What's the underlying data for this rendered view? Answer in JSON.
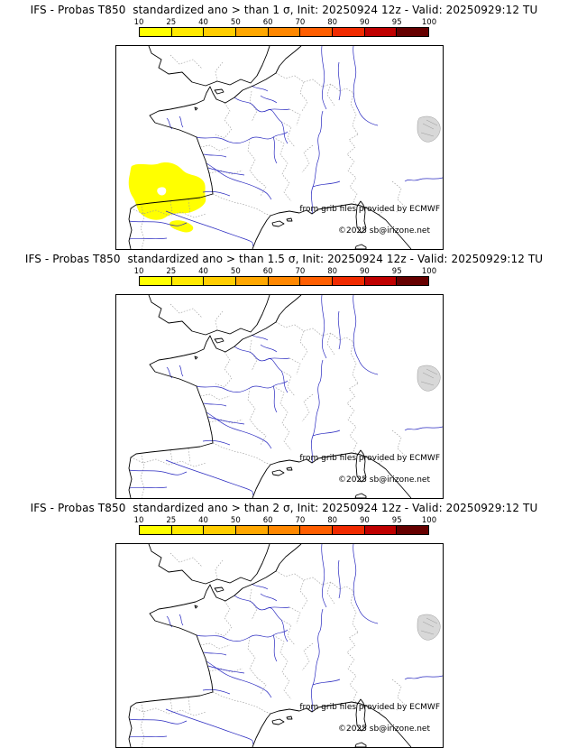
{
  "colorbar": {
    "ticks": [
      "10",
      "25",
      "40",
      "50",
      "60",
      "70",
      "80",
      "90",
      "95",
      "100"
    ],
    "colors": [
      "#ffff00",
      "#ffe900",
      "#ffcd00",
      "#ffa700",
      "#ff8700",
      "#ff5e00",
      "#f02a00",
      "#bf0000",
      "#660000"
    ],
    "unit": "%"
  },
  "map_colors": {
    "coastline": "#000000",
    "rivers": "#2a2ac0",
    "admin_borders": "#999999",
    "relief": "#d8d8d8",
    "anomaly_fill": "#ffff00"
  },
  "panels": [
    {
      "title": "IFS - Probas T850  standardized ano > than 1 σ, Init: 20250924 12z - Valid: 20250929:12 TU",
      "attribution": "from grib files provided by ECMWF",
      "copyright": "©2025 sb@irizone.net",
      "anomaly_present": true,
      "anomaly_region": "northwest Iberia",
      "anomaly_probability_band": "10-25",
      "anomaly_class": "anomaly shown"
    },
    {
      "title": "IFS - Probas T850  standardized ano > than 1.5 σ, Init: 20250924 12z - Valid: 20250929:12 TU",
      "attribution": "from grib files provided by ECMWF",
      "copyright": "©2025 sb@irizone.net",
      "anomaly_present": false,
      "anomaly_region": "",
      "anomaly_probability_band": "",
      "anomaly_class": "anomaly hidden"
    },
    {
      "title": "IFS - Probas T850  standardized ano > than 2 σ, Init: 20250924 12z - Valid: 20250929:12 TU",
      "attribution": "from grib files provided by ECMWF",
      "copyright": "©2025 sb@irizone.net",
      "anomaly_present": false,
      "anomaly_region": "",
      "anomaly_probability_band": "",
      "anomaly_class": "anomaly hidden"
    }
  ]
}
